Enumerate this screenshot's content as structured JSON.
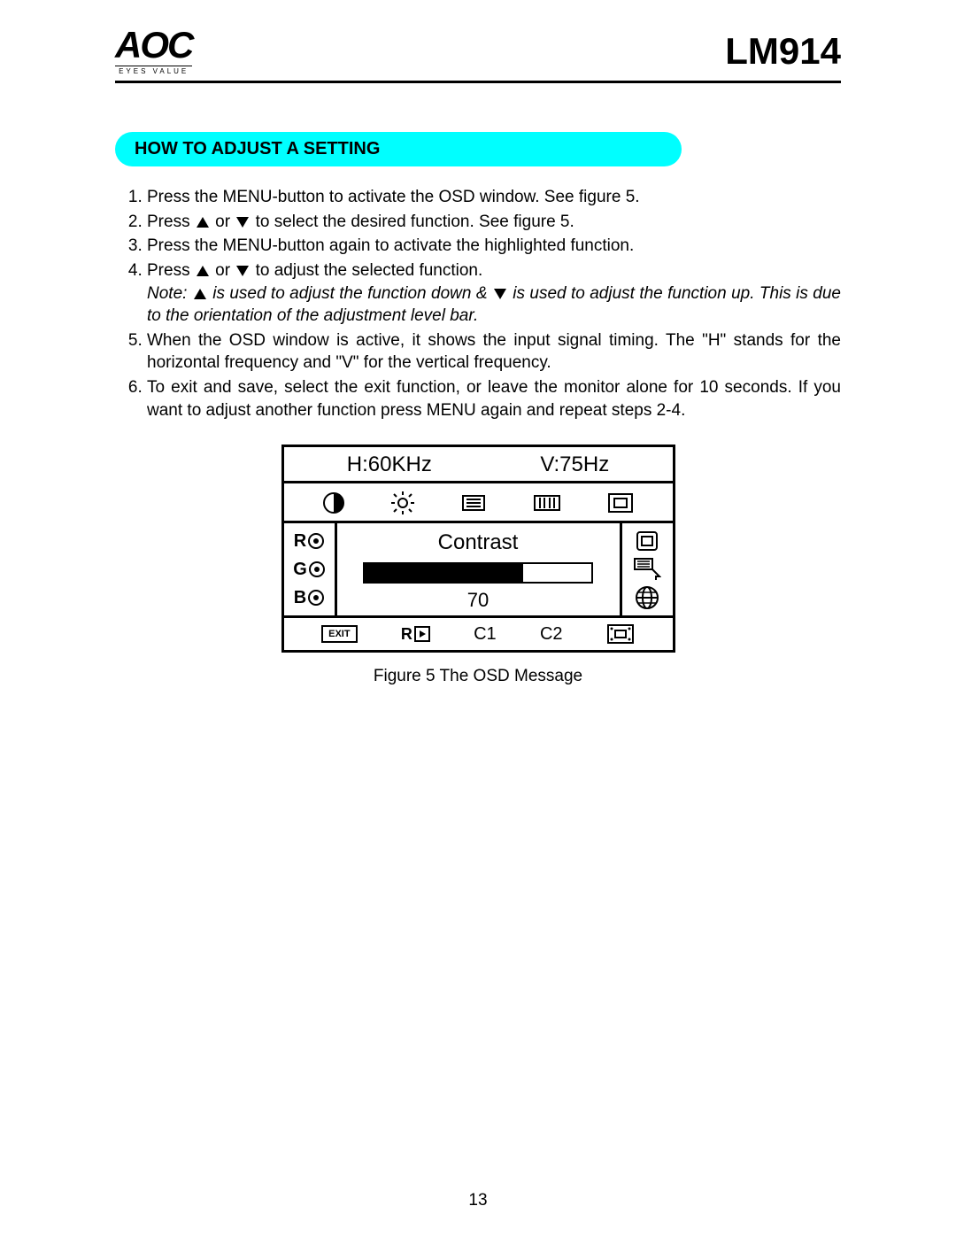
{
  "header": {
    "brand": "AOC",
    "tagline": "EYES VALUE",
    "model": "LM914"
  },
  "section_title": "HOW TO ADJUST A SETTING",
  "steps": {
    "s1": "Press the MENU-button  to activate the OSD window. See figure 5.",
    "s2a": "Press ",
    "s2b": " or ",
    "s2c": " to select the desired function. See figure 5.",
    "s3": "Press the MENU-button again to activate the highlighted function.",
    "s4a": "Press ",
    "s4b": " or ",
    "s4c": " to adjust the selected function.",
    "notea": "Note: ",
    "noteb": " is used to adjust the function down & ",
    "notec": " is used to adjust the function up.  This is due to the orientation of the adjustment level bar.",
    "s5": "When the OSD window is active, it shows the input signal timing. The  \"H\" stands for the horizontal frequency and \"V\" for the vertical frequency.",
    "s6": "To exit and save, select the exit function, or leave the monitor alone for 10 seconds. If you want to adjust another function press MENU again and repeat steps 2-4."
  },
  "osd": {
    "h_label": "H:60KHz",
    "v_label": "V:75Hz",
    "function_label": "Contrast",
    "value": "70",
    "value_percent": 70,
    "left_labels": [
      "R",
      "G",
      "B"
    ],
    "bottom": {
      "exit": "EXIT",
      "reset": "R",
      "c1": "C1",
      "c2": "C2"
    }
  },
  "figure_caption": "Figure 5     The  OSD  Message",
  "page_number": "13"
}
